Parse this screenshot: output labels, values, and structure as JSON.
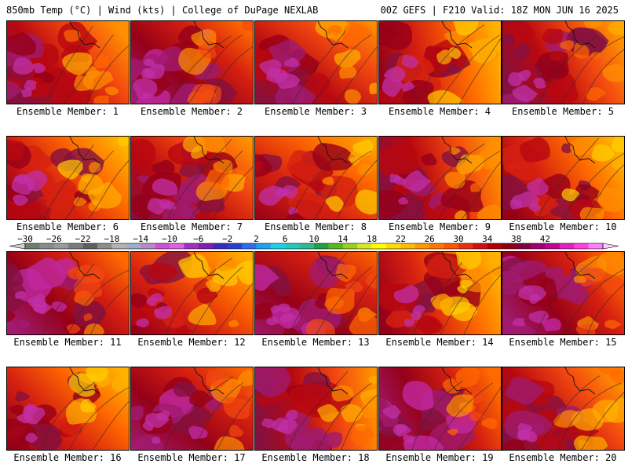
{
  "header": {
    "title": "850mb Temp (°C) | Wind (kts) | College of DuPage NEXLAB",
    "run_info": "00Z GEFS | F210 Valid: 18Z MON JUN 16 2025"
  },
  "members": [
    {
      "label": "Ensemble Member: 1",
      "theme": 1
    },
    {
      "label": "Ensemble Member: 2",
      "theme": 2
    },
    {
      "label": "Ensemble Member: 3",
      "theme": 3
    },
    {
      "label": "Ensemble Member: 4",
      "theme": 4
    },
    {
      "label": "Ensemble Member: 5",
      "theme": 5
    },
    {
      "label": "Ensemble Member: 6",
      "theme": 6
    },
    {
      "label": "Ensemble Member: 7",
      "theme": 7
    },
    {
      "label": "Ensemble Member: 8",
      "theme": 8
    },
    {
      "label": "Ensemble Member: 9",
      "theme": 9
    },
    {
      "label": "Ensemble Member: 10",
      "theme": 10
    },
    {
      "label": "Ensemble Member: 11",
      "theme": 11
    },
    {
      "label": "Ensemble Member: 12",
      "theme": 12
    },
    {
      "label": "Ensemble Member: 13",
      "theme": 13
    },
    {
      "label": "Ensemble Member: 14",
      "theme": 14
    },
    {
      "label": "Ensemble Member: 15",
      "theme": 15
    },
    {
      "label": "Ensemble Member: 16",
      "theme": 16
    },
    {
      "label": "Ensemble Member: 17",
      "theme": 17
    },
    {
      "label": "Ensemble Member: 18",
      "theme": 18
    },
    {
      "label": "Ensemble Member: 19",
      "theme": 19
    },
    {
      "label": "Ensemble Member: 20",
      "theme": 20
    }
  ],
  "colorbar": {
    "tick_labels": [
      "-30",
      "-26",
      "-22",
      "-18",
      "-14",
      "-10",
      "-6",
      "-2",
      "2",
      "6",
      "10",
      "14",
      "18",
      "22",
      "26",
      "30",
      "34",
      "38",
      "42"
    ],
    "colors": [
      "#6b7d6b",
      "#8a8a8a",
      "#9a9a9a",
      "#7a7a7a",
      "#5e5e5e",
      "#8c8c8c",
      "#b2b2b2",
      "#9ab0c4",
      "#b48cc8",
      "#d050d0",
      "#e060e0",
      "#a030c0",
      "#8020b0",
      "#3a2ab8",
      "#2840d0",
      "#2d6ee8",
      "#20a0f0",
      "#20d0e8",
      "#20c8b8",
      "#30b890",
      "#20a040",
      "#58b820",
      "#98d020",
      "#d8e820",
      "#ffff00",
      "#ffdd00",
      "#ffbb00",
      "#ff9900",
      "#ff7700",
      "#ff5500",
      "#e83010",
      "#d01010",
      "#b00000",
      "#900010",
      "#800040",
      "#a00070",
      "#c00090",
      "#e020c0",
      "#ff40e0",
      "#ff80ff"
    ]
  }
}
